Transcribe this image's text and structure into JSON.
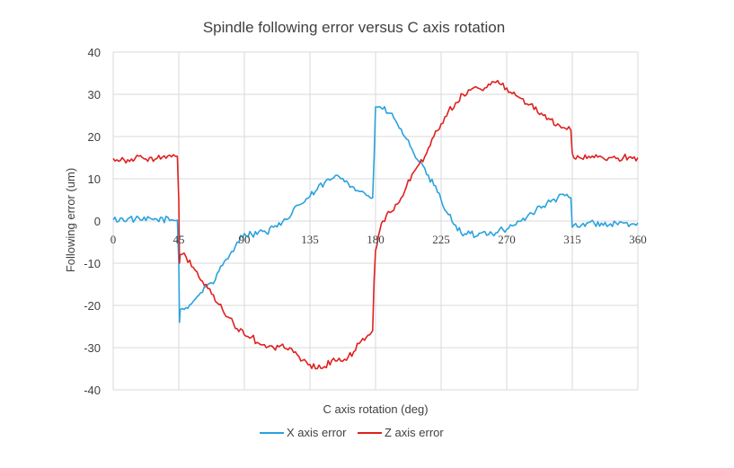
{
  "chart_data": {
    "type": "line",
    "title": "Spindle following error versus C axis rotation",
    "xlabel": "C axis rotation (deg)",
    "ylabel": "Following error (um)",
    "xlim": [
      0,
      360
    ],
    "ylim": [
      -40,
      40
    ],
    "x_ticks": [
      "0",
      "45",
      "90",
      "135",
      "180",
      "225",
      "270",
      "315",
      "360"
    ],
    "y_ticks": [
      "40",
      "30",
      "20",
      "10",
      "0",
      "-10",
      "-20",
      "-30",
      "-40"
    ],
    "grid": true,
    "legend_position": "bottom",
    "series": [
      {
        "name": "X axis error",
        "color": "#29a3dd",
        "x": [
          0,
          10,
          20,
          30,
          40,
          44,
          45,
          45.5,
          46,
          50,
          55,
          60,
          65,
          70,
          75,
          80,
          85,
          90,
          95,
          100,
          105,
          110,
          115,
          120,
          125,
          130,
          135,
          140,
          145,
          150,
          155,
          160,
          165,
          170,
          175,
          178,
          179,
          180,
          182,
          185,
          190,
          195,
          200,
          205,
          210,
          215,
          220,
          225,
          230,
          235,
          240,
          245,
          250,
          255,
          260,
          265,
          270,
          275,
          280,
          285,
          290,
          295,
          300,
          305,
          310,
          314,
          315,
          316,
          320,
          325,
          330,
          335,
          340,
          345,
          350,
          355,
          360
        ],
        "y": [
          0.3,
          0.5,
          0.2,
          0.4,
          0.3,
          0.2,
          -10,
          -24,
          -21,
          -20.5,
          -19,
          -17,
          -15,
          -14,
          -10.5,
          -8,
          -5,
          -3,
          -3.2,
          -2.5,
          -2.8,
          -1.5,
          -1,
          0.5,
          3.5,
          4.2,
          5.8,
          7.5,
          9,
          10,
          10.5,
          9.5,
          8,
          7,
          6,
          5.5,
          15,
          27,
          27,
          26.5,
          25.5,
          23,
          20,
          17,
          14,
          11,
          8.5,
          5,
          1.5,
          -1,
          -3.5,
          -3,
          -3.5,
          -2.5,
          -3,
          -2,
          -2,
          -1,
          0,
          1.5,
          2.5,
          3.5,
          4.5,
          5.5,
          6,
          5.5,
          -1.5,
          -1,
          -1.5,
          -0.5,
          -0.5,
          -0.5,
          -1,
          -0.5,
          -0.5,
          -0.8,
          -0.5
        ]
      },
      {
        "name": "Z axis error",
        "color": "#e0201f",
        "x": [
          0,
          10,
          20,
          30,
          40,
          44,
          45,
          45.5,
          46,
          50,
          55,
          60,
          65,
          70,
          75,
          80,
          85,
          90,
          95,
          100,
          105,
          110,
          115,
          120,
          125,
          130,
          135,
          140,
          145,
          150,
          155,
          160,
          165,
          170,
          175,
          178,
          179,
          180,
          182,
          185,
          190,
          195,
          200,
          205,
          210,
          215,
          220,
          225,
          230,
          235,
          240,
          245,
          250,
          255,
          260,
          265,
          270,
          275,
          280,
          285,
          290,
          295,
          300,
          305,
          310,
          314,
          315,
          316,
          320,
          325,
          330,
          335,
          340,
          345,
          350,
          355,
          360
        ],
        "y": [
          14.8,
          14.5,
          15,
          14.8,
          15.2,
          15.3,
          5,
          -10,
          -8,
          -8.5,
          -11,
          -14,
          -16,
          -19,
          -21,
          -23,
          -25.5,
          -27,
          -27.5,
          -29,
          -30,
          -30,
          -29.5,
          -30.5,
          -31,
          -33,
          -34,
          -35,
          -34.5,
          -33,
          -32.5,
          -33,
          -31,
          -28.5,
          -27,
          -26,
          -14,
          -7,
          -3.5,
          0,
          2,
          4,
          7,
          11,
          13.5,
          16,
          20,
          23,
          26,
          28,
          30,
          31,
          31.5,
          31.5,
          33,
          32.5,
          31.5,
          30.5,
          29,
          27.5,
          27,
          25,
          24,
          23,
          22,
          21.5,
          16,
          15,
          15,
          14.8,
          15,
          15.2,
          15,
          14.8,
          15,
          15.2,
          15
        ]
      }
    ]
  }
}
